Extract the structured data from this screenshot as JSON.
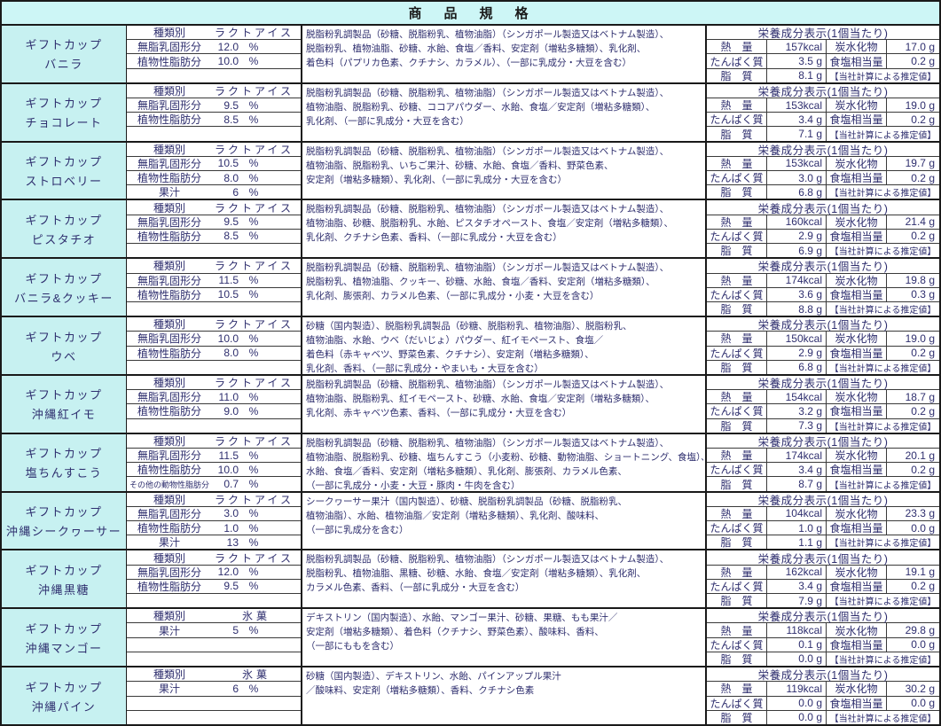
{
  "title": "商　品　規　格",
  "nutrition_header": "栄養成分表示(1個当たり)",
  "nutrition_labels": {
    "energy": "熱　量",
    "protein": "たんぱく質",
    "fat": "脂　質",
    "carbs": "炭水化物",
    "salt": "食塩相当量",
    "note": "【当社計算による推定値】"
  },
  "products": [
    {
      "name_line1": "ギフトカップ",
      "name_line2": "バニラ",
      "specs": [
        {
          "label": "種類別",
          "value": "ラクトアイス",
          "unit": ""
        },
        {
          "label": "無脂乳固形分",
          "value": "12.0",
          "unit": "%"
        },
        {
          "label": "植物性脂肪分",
          "value": "10.0",
          "unit": "%"
        },
        {
          "label": "",
          "value": "",
          "unit": ""
        }
      ],
      "ingredients": [
        "脱脂粉乳調製品（砂糖、脱脂粉乳、植物油脂）（シンガポール製造又はベトナム製造）、",
        "脱脂粉乳、植物油脂、砂糖、水飴、食塩／香料、安定剤（増粘多糖類）、乳化剤、",
        "着色料（パプリカ色素、クチナシ、カラメル）、（一部に乳成分・大豆を含む）"
      ],
      "nutrition": {
        "energy": "157kcal",
        "protein": "3.5 g",
        "fat": "8.1 g",
        "carbs": "17.0 g",
        "salt": "0.2 g"
      }
    },
    {
      "name_line1": "ギフトカップ",
      "name_line2": "チョコレート",
      "specs": [
        {
          "label": "種類別",
          "value": "ラクトアイス",
          "unit": ""
        },
        {
          "label": "無脂乳固形分",
          "value": "9.5",
          "unit": "%"
        },
        {
          "label": "植物性脂肪分",
          "value": "8.5",
          "unit": "%"
        },
        {
          "label": "",
          "value": "",
          "unit": ""
        }
      ],
      "ingredients": [
        "脱脂粉乳調製品（砂糖、脱脂粉乳、植物油脂）（シンガポール製造又はベトナム製造）、",
        "植物油脂、脱脂粉乳、砂糖、ココアパウダー、水飴、食塩／安定剤（増粘多糖類）、",
        "乳化剤、（一部に乳成分・大豆を含む）"
      ],
      "nutrition": {
        "energy": "153kcal",
        "protein": "3.4 g",
        "fat": "7.1 g",
        "carbs": "19.0 g",
        "salt": "0.2 g"
      }
    },
    {
      "name_line1": "ギフトカップ",
      "name_line2": "ストロベリー",
      "specs": [
        {
          "label": "種類別",
          "value": "ラクトアイス",
          "unit": ""
        },
        {
          "label": "無脂乳固形分",
          "value": "10.5",
          "unit": "%"
        },
        {
          "label": "植物性脂肪分",
          "value": "8.0",
          "unit": "%"
        },
        {
          "label": "果汁",
          "value": "6",
          "unit": "%"
        }
      ],
      "ingredients": [
        "脱脂粉乳調製品（砂糖、脱脂粉乳、植物油脂）（シンガポール製造又はベトナム製造）、",
        "植物油脂、脱脂粉乳、いちご果汁、砂糖、水飴、食塩／香料、野菜色素、",
        "安定剤（増粘多糖類）、乳化剤、（一部に乳成分・大豆を含む）"
      ],
      "nutrition": {
        "energy": "153kcal",
        "protein": "3.0 g",
        "fat": "6.8 g",
        "carbs": "19.7 g",
        "salt": "0.2 g"
      }
    },
    {
      "name_line1": "ギフトカップ",
      "name_line2": "ピスタチオ",
      "specs": [
        {
          "label": "種類別",
          "value": "ラクトアイス",
          "unit": ""
        },
        {
          "label": "無脂乳固形分",
          "value": "9.5",
          "unit": "%"
        },
        {
          "label": "植物性脂肪分",
          "value": "8.5",
          "unit": "%"
        },
        {
          "label": "",
          "value": "",
          "unit": ""
        }
      ],
      "ingredients": [
        "脱脂粉乳調製品（砂糖、脱脂粉乳、植物油脂）（シンガポール製造又はベトナム製造）、",
        "植物油脂、砂糖、脱脂粉乳、水飴、ピスタチオペースト、食塩／安定剤（増粘多糖類）、",
        "乳化剤、クチナシ色素、香料、（一部に乳成分・大豆を含む）"
      ],
      "nutrition": {
        "energy": "160kcal",
        "protein": "2.9 g",
        "fat": "6.9 g",
        "carbs": "21.4 g",
        "salt": "0.2 g"
      }
    },
    {
      "name_line1": "ギフトカップ",
      "name_line2": "バニラ&クッキー",
      "specs": [
        {
          "label": "種類別",
          "value": "ラクトアイス",
          "unit": ""
        },
        {
          "label": "無脂乳固形分",
          "value": "11.5",
          "unit": "%"
        },
        {
          "label": "植物性脂肪分",
          "value": "10.5",
          "unit": "%"
        },
        {
          "label": "",
          "value": "",
          "unit": ""
        }
      ],
      "ingredients": [
        "脱脂粉乳調製品（砂糖、脱脂粉乳、植物油脂）（シンガポール製造又はベトナム製造）、",
        "脱脂粉乳、植物油脂、クッキー、砂糖、水飴、食塩／香料、安定剤（増粘多糖類）、",
        "乳化剤、膨張剤、カラメル色素、（一部に乳成分・小麦・大豆を含む）"
      ],
      "nutrition": {
        "energy": "174kcal",
        "protein": "3.6 g",
        "fat": "8.8 g",
        "carbs": "19.8 g",
        "salt": "0.3 g"
      }
    },
    {
      "name_line1": "ギフトカップ",
      "name_line2": "ウベ",
      "specs": [
        {
          "label": "種類別",
          "value": "ラクトアイス",
          "unit": ""
        },
        {
          "label": "無脂乳固形分",
          "value": "10.0",
          "unit": "%"
        },
        {
          "label": "植物性脂肪分",
          "value": "8.0",
          "unit": "%"
        },
        {
          "label": "",
          "value": "",
          "unit": ""
        }
      ],
      "ingredients": [
        "砂糖（国内製造）、脱脂粉乳調製品（砂糖、脱脂粉乳、植物油脂）、脱脂粉乳、",
        "植物油脂、水飴、ウベ（だいじょ）パウダー、紅イモペースト、食塩／",
        "着色料（赤キャベツ、野菜色素、クチナシ）、安定剤（増粘多糖類）、",
        "乳化剤、香料、（一部に乳成分・やまいも・大豆を含む）"
      ],
      "nutrition": {
        "energy": "150kcal",
        "protein": "2.9 g",
        "fat": "6.8 g",
        "carbs": "19.0 g",
        "salt": "0.2 g"
      }
    },
    {
      "name_line1": "ギフトカップ",
      "name_line2": "沖縄紅イモ",
      "specs": [
        {
          "label": "種類別",
          "value": "ラクトアイス",
          "unit": ""
        },
        {
          "label": "無脂乳固形分",
          "value": "11.0",
          "unit": "%"
        },
        {
          "label": "植物性脂肪分",
          "value": "9.0",
          "unit": "%"
        },
        {
          "label": "",
          "value": "",
          "unit": ""
        }
      ],
      "ingredients": [
        "脱脂粉乳調製品（砂糖、脱脂粉乳、植物油脂）（シンガポール製造又はベトナム製造）、",
        "植物油脂、脱脂粉乳、紅イモペースト、砂糖、水飴、食塩／安定剤（増粘多糖類）、",
        "乳化剤、赤キャベツ色素、香料、（一部に乳成分・大豆を含む）"
      ],
      "nutrition": {
        "energy": "154kcal",
        "protein": "3.2 g",
        "fat": "7.3 g",
        "carbs": "18.7 g",
        "salt": "0.2 g"
      }
    },
    {
      "name_line1": "ギフトカップ",
      "name_line2": "塩ちんすこう",
      "specs": [
        {
          "label": "種類別",
          "value": "ラクトアイス",
          "unit": ""
        },
        {
          "label": "無脂乳固形分",
          "value": "11.5",
          "unit": "%"
        },
        {
          "label": "植物性脂肪分",
          "value": "10.0",
          "unit": "%"
        },
        {
          "label": "その他の動物性脂肪分",
          "value": "0.7",
          "unit": "%"
        }
      ],
      "ingredients": [
        "脱脂粉乳調製品（砂糖、脱脂粉乳、植物油脂）（シンガポール製造又はベトナム製造）、",
        "植物油脂、脱脂粉乳、砂糖、塩ちんすこう（小麦粉、砂糖、動物油脂、ショートニング、食塩）、",
        "水飴、食塩／香料、安定剤（増粘多糖類）、乳化剤、膨張剤、カラメル色素、",
        "（一部に乳成分・小麦・大豆・豚肉・牛肉を含む）"
      ],
      "nutrition": {
        "energy": "174kcal",
        "protein": "3.4 g",
        "fat": "8.7 g",
        "carbs": "20.1 g",
        "salt": "0.2 g"
      }
    },
    {
      "name_line1": "ギフトカップ",
      "name_line2": "沖縄シークヮーサー",
      "specs": [
        {
          "label": "種類別",
          "value": "ラクトアイス",
          "unit": ""
        },
        {
          "label": "無脂乳固形分",
          "value": "3.0",
          "unit": "%"
        },
        {
          "label": "植物性脂肪分",
          "value": "1.0",
          "unit": "%"
        },
        {
          "label": "果汁",
          "value": "13",
          "unit": "%"
        }
      ],
      "ingredients": [
        "シークヮーサー果汁（国内製造）、砂糖、脱脂粉乳調製品（砂糖、脱脂粉乳、",
        "植物油脂）、水飴、植物油脂／安定剤（増粘多糖類）、乳化剤、酸味料、",
        "（一部に乳成分を含む）"
      ],
      "nutrition": {
        "energy": "104kcal",
        "protein": "1.0 g",
        "fat": "1.1 g",
        "carbs": "23.3 g",
        "salt": "0.0 g"
      }
    },
    {
      "name_line1": "ギフトカップ",
      "name_line2": "沖縄黒糖",
      "specs": [
        {
          "label": "種類別",
          "value": "ラクトアイス",
          "unit": ""
        },
        {
          "label": "無脂乳固形分",
          "value": "12.0",
          "unit": "%"
        },
        {
          "label": "植物性脂肪分",
          "value": "9.5",
          "unit": "%"
        },
        {
          "label": "",
          "value": "",
          "unit": ""
        }
      ],
      "ingredients": [
        "脱脂粉乳調製品（砂糖、脱脂粉乳、植物油脂）（シンガポール製造又はベトナム製造）、",
        "脱脂粉乳、植物油脂、黒糖、砂糖、水飴、食塩／安定剤（増粘多糖類）、乳化剤、",
        "カラメル色素、香料、（一部に乳成分・大豆を含む）"
      ],
      "nutrition": {
        "energy": "162kcal",
        "protein": "3.4 g",
        "fat": "7.9 g",
        "carbs": "19.1 g",
        "salt": "0.2 g"
      }
    },
    {
      "name_line1": "ギフトカップ",
      "name_line2": "沖縄マンゴー",
      "specs": [
        {
          "label": "種類別",
          "value": "氷菓",
          "unit": ""
        },
        {
          "label": "果汁",
          "value": "5",
          "unit": "%"
        },
        {
          "label": "",
          "value": "",
          "unit": ""
        },
        {
          "label": "",
          "value": "",
          "unit": ""
        }
      ],
      "ingredients": [
        "デキストリン（国内製造）、水飴、マンゴー果汁、砂糖、果糖、もも果汁／",
        "安定剤（増粘多糖類）、着色料（クチナシ、野菜色素）、酸味料、香料、",
        "（一部にももを含む）"
      ],
      "nutrition": {
        "energy": "118kcal",
        "protein": "0.1 g",
        "fat": "0.0 g",
        "carbs": "29.8 g",
        "salt": "0.0 g"
      }
    },
    {
      "name_line1": "ギフトカップ",
      "name_line2": "沖縄パイン",
      "specs": [
        {
          "label": "種類別",
          "value": "氷菓",
          "unit": ""
        },
        {
          "label": "果汁",
          "value": "6",
          "unit": "%"
        },
        {
          "label": "",
          "value": "",
          "unit": ""
        },
        {
          "label": "",
          "value": "",
          "unit": ""
        }
      ],
      "ingredients": [
        "砂糖（国内製造）、デキストリン、水飴、パインアップル果汁",
        "／酸味料、安定剤（増粘多糖類）、香料、クチナシ色素"
      ],
      "nutrition": {
        "energy": "119kcal",
        "protein": "0.0 g",
        "fat": "0.0 g",
        "carbs": "30.2 g",
        "salt": "0.0 g"
      }
    }
  ]
}
